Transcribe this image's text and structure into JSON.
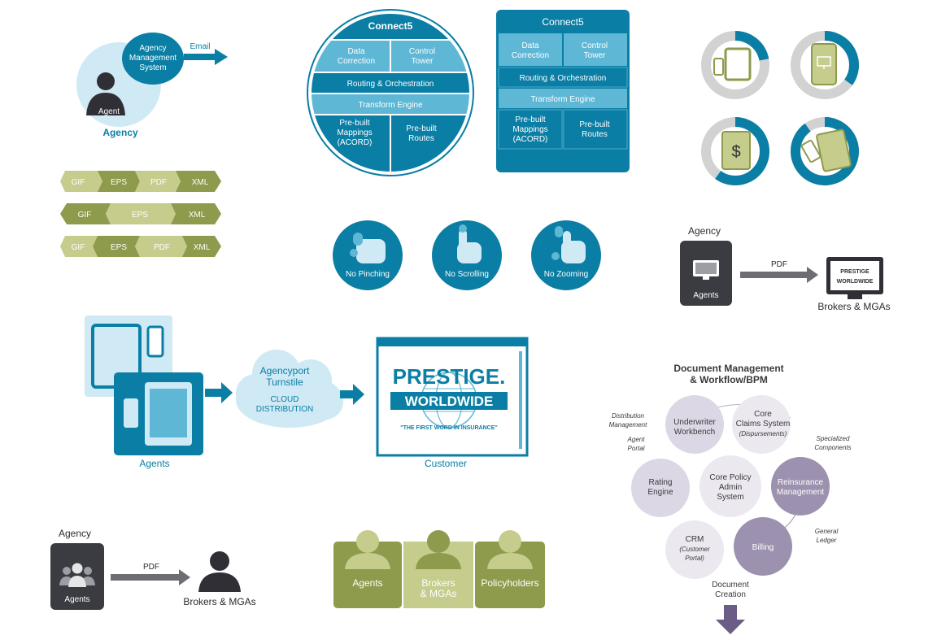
{
  "agency_email": {
    "title": "Agency",
    "bubble_line1": "Agency",
    "bubble_line2": "Management",
    "bubble_line3": "System",
    "arrow_label": "Email",
    "person_label": "Agent"
  },
  "format_rows": [
    [
      "GIF",
      "EPS",
      "PDF",
      "XML"
    ],
    [
      "GIF",
      "EPS",
      "XML"
    ],
    [
      "GIF",
      "EPS",
      "PDF",
      "XML"
    ]
  ],
  "connect5_round": {
    "title": "Connect5",
    "data_correction": [
      "Data",
      "Correction"
    ],
    "control_tower": [
      "Control",
      "Tower"
    ],
    "routing": "Routing & Orchestration",
    "transform": "Transform Engine",
    "mappings": [
      "Pre-built",
      "Mappings",
      "(ACORD)"
    ],
    "routes": [
      "Pre-built",
      "Routes"
    ]
  },
  "connect5_square": {
    "title": "Connect5",
    "data_correction": [
      "Data",
      "Correction"
    ],
    "control_tower": [
      "Control",
      "Tower"
    ],
    "routing": "Routing & Orchestration",
    "transform": "Transform Engine",
    "mappings": [
      "Pre-built",
      "Mappings",
      "(ACORD)"
    ],
    "routes": [
      "Pre-built",
      "Routes"
    ]
  },
  "gestures": [
    {
      "label": "No Pinching"
    },
    {
      "label": "No Scrolling"
    },
    {
      "label": "No Zooming"
    }
  ],
  "device_rings": [
    {
      "icon": "tablet-phone",
      "fill": 0.22
    },
    {
      "icon": "phone-monitor",
      "fill": 0.35
    },
    {
      "icon": "tablet-dollar",
      "fill": 0.6
    },
    {
      "icon": "phone-tablet",
      "fill": 0.9
    }
  ],
  "agency_pdf_top": {
    "title": "Agency",
    "box_label": "Agents",
    "arrow_label": "PDF",
    "target_label": "Brokers & MGAs",
    "logo_top": "PRESTIGE",
    "logo_bottom": "WORLDWIDE"
  },
  "cloud_flow": {
    "agents_label": "Agents",
    "cloud_line1": "Agencyport",
    "cloud_line2": "Turnstile",
    "cloud_line3": "CLOUD",
    "cloud_line4": "DISTRIBUTION",
    "customer_label": "Customer",
    "logo_top": "PRESTIGE.",
    "logo_bottom": "WORLDWIDE",
    "logo_tagline": "\"THE FIRST WORD IN INSURANCE\""
  },
  "doc_mgmt": {
    "title_line1": "Document Management",
    "title_line2": "& Workflow/BPM",
    "underwriter": [
      "Underwriter",
      "Workbench"
    ],
    "core_claims": [
      "Core",
      "Claims System",
      "(Dispursements)"
    ],
    "rating": [
      "Rating",
      "Engine"
    ],
    "core_policy": [
      "Core Policy",
      "Admin",
      "System"
    ],
    "reinsurance": [
      "Reinsurance",
      "Management"
    ],
    "crm": [
      "CRM",
      "(Customer",
      "Portal)"
    ],
    "billing": "Billing",
    "distribution_mgmt": [
      "Distribution",
      "Management"
    ],
    "agent_portal": [
      "Agent",
      "Portal"
    ],
    "specialized": [
      "Specialized",
      "Components"
    ],
    "general_ledger": [
      "General",
      "Ledger"
    ],
    "doc_creation": [
      "Document",
      "Creation"
    ]
  },
  "agency_pdf_bottom": {
    "title": "Agency",
    "box_label": "Agents",
    "arrow_label": "PDF",
    "target_label": "Brokers & MGAs"
  },
  "audiences": [
    {
      "label": "Agents"
    },
    {
      "label": "Brokers",
      "label2": "& MGAs"
    },
    {
      "label": "Policyholders"
    }
  ],
  "colors": {
    "teal": "#0a7ea4",
    "teal_light": "#5fb7d6",
    "teal_pale": "#cfe9f5",
    "olive": "#8e9a4c",
    "olive_light": "#c5cc8c",
    "grey_dark": "#4a4a4a",
    "purple": "#9c91ae",
    "purple_light": "#dcd7e4"
  }
}
